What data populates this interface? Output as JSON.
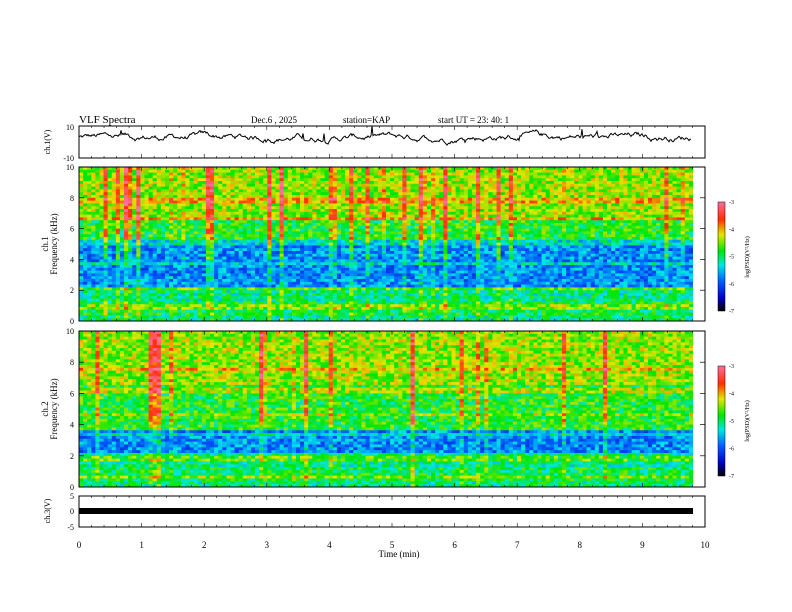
{
  "header": {
    "title": "VLF Spectra",
    "date": "Dec.6 , 2025",
    "station": "station=KAP",
    "start_ut": "start UT = 23: 40: 1"
  },
  "chart_data": [
    {
      "type": "line",
      "name": "ch1-waveform",
      "ylabel": "ch.1(V)",
      "ylim": [
        -10,
        10
      ],
      "ytick_labels": [
        "10",
        "-10"
      ],
      "xlim": [
        0,
        10
      ],
      "description_series": "ch.1 voltage envelope, oscillating around +3 V"
    },
    {
      "type": "heatmap",
      "name": "ch1-spectrogram",
      "ylabel_line1": "ch.1",
      "ylabel_line2": "Frequency (kHz)",
      "ylim": [
        0,
        10
      ],
      "ytick_labels": [
        "0",
        "2",
        "4",
        "6",
        "8",
        "10"
      ],
      "xlim": [
        0,
        10
      ],
      "colorbar": {
        "label": "log(PSD)(V²/Hz)",
        "range": [
          -7,
          -3
        ],
        "tick_labels": [
          "-3",
          "-4",
          "-5",
          "-6",
          "-7"
        ]
      }
    },
    {
      "type": "heatmap",
      "name": "ch2-spectrogram",
      "ylabel_line1": "ch.2",
      "ylabel_line2": "Frequency (kHz)",
      "ylim": [
        0,
        10
      ],
      "ytick_labels": [
        "0",
        "2",
        "4",
        "6",
        "8",
        "10"
      ],
      "xlim": [
        0,
        10
      ],
      "colorbar": {
        "label": "log(PSD)(V²/Hz)",
        "range": [
          -7,
          -3
        ],
        "tick_labels": [
          "-3",
          "-4",
          "-5",
          "-6",
          "-7"
        ]
      }
    },
    {
      "type": "line",
      "name": "ch3-waveform",
      "ylabel": "ch.3(V)",
      "ylim": [
        -5,
        5
      ],
      "ytick_labels": [
        "5",
        "0",
        "-5"
      ],
      "xlim": [
        0,
        10
      ],
      "xlabel": "Time (min)",
      "xtick_labels": [
        "0",
        "1",
        "2",
        "3",
        "4",
        "5",
        "6",
        "7",
        "8",
        "9",
        "10"
      ],
      "description_series": "ch.3 constant dense signal near 0 V"
    }
  ],
  "colors": {
    "axis": "#000000",
    "background": "#ffffff"
  }
}
